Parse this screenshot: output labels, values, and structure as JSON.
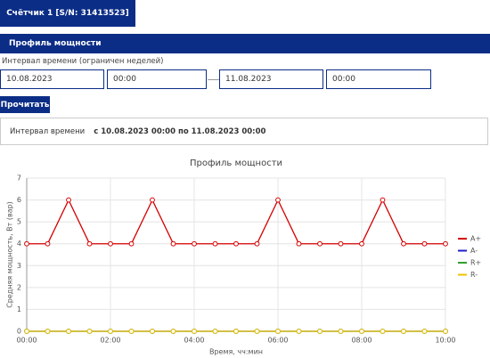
{
  "counter_button": "Счётчик 1 [S/N: 31413523]",
  "section_title": "Профиль мощности",
  "interval_label": "Интервал времени (ограничен неделей)",
  "inputs": [
    "10.08.2023",
    "00:00",
    "11.08.2023",
    "00:00"
  ],
  "read_button": "Прочитать",
  "info": {
    "label": "Интервал времени",
    "value": "с 10.08.2023 00:00 по 11.08.2023 00:00"
  },
  "chart_data": {
    "type": "line",
    "title": "Профиль мощности",
    "x_label": "Время, чч:мин",
    "y_label": "Средняя мощность, Вт (вар)",
    "categories": [
      "00:00",
      null,
      null,
      null,
      "02:00",
      null,
      null,
      null,
      "04:00",
      null,
      null,
      null,
      "06:00",
      null,
      null,
      null,
      "08:00",
      null,
      null,
      null,
      "10:00"
    ],
    "series": [
      {
        "name": "A+",
        "color": "#d40000",
        "values": [
          4,
          4,
          6,
          4,
          4,
          4,
          6,
          4,
          4,
          4,
          4,
          4,
          6,
          4,
          4,
          4,
          4,
          6,
          4,
          4,
          4
        ]
      },
      {
        "name": "A-",
        "color": "#1f1fcc",
        "values": [
          0,
          0,
          0,
          0,
          0,
          0,
          0,
          0,
          0,
          0,
          0,
          0,
          0,
          0,
          0,
          0,
          0,
          0,
          0,
          0,
          0
        ]
      },
      {
        "name": "R+",
        "color": "#2ea02e",
        "values": [
          0,
          0,
          0,
          0,
          0,
          0,
          0,
          0,
          0,
          0,
          0,
          0,
          0,
          0,
          0,
          0,
          0,
          0,
          0,
          0,
          0
        ]
      },
      {
        "name": "R-",
        "color": "#f2c200",
        "values": [
          0,
          0,
          0,
          0,
          0,
          0,
          0,
          0,
          0,
          0,
          0,
          0,
          0,
          0,
          0,
          0,
          0,
          0,
          0,
          0,
          0
        ]
      }
    ],
    "ylim": [
      0,
      7
    ],
    "yticks": [
      0,
      1,
      2,
      3,
      4,
      5,
      6,
      7
    ],
    "grid": true,
    "legend": "right"
  }
}
